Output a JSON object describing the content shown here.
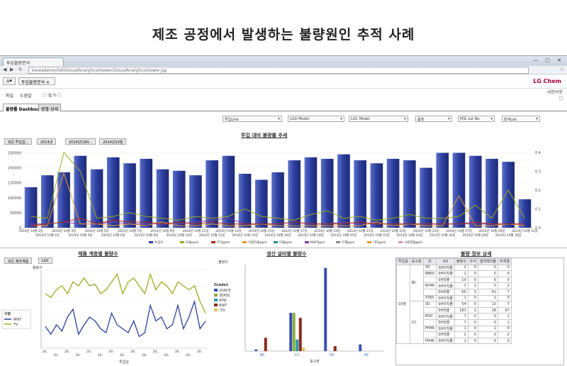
{
  "headline": "제조 공정에서 발생하는 불량원인 추적 사례",
  "browser": {
    "tab_title": "투입불량분석",
    "url": "koreademo/SASVisualAnalyticsViewer/VisualAnalyticsViewer.jsp",
    "win_controls": "— ▢ ✕"
  },
  "app": {
    "home_label": "⌂▾",
    "report_label": "투입불량분석 ✕",
    "logo": "LG Chem",
    "menu_file": "파일",
    "menu_help": "도움말",
    "menu_icons": "🗀 🖫 ↻ ⛶",
    "top_right_link": "사인아웃",
    "top_right_icon": "□",
    "tabs": [
      "불량률 Dashboard",
      "원별 상세"
    ]
  },
  "filters": [
    "투입Line",
    "LGD Model",
    "LGC Model",
    "품명",
    "POL Lot No.",
    "최적List"
  ],
  "top_chart": {
    "title": "투입 대비 불량률 추세",
    "breadcrumbs": [
      "모든 투입일...",
      "2014년",
      "2014년1월4...",
      "2014년10월"
    ],
    "y_left_ticks": [
      "0",
      "50000",
      "100000",
      "150000",
      "200000",
      "250000"
    ],
    "y_right_ticks": [
      "0.0",
      "0.1",
      "0.2",
      "0.3",
      "0.4"
    ],
    "legend": [
      "투입수",
      "투율ppm",
      "부식ppm",
      "이형이물ppm",
      "이물ppm",
      "NWTppm",
      "두께ppm",
      "기타ppm",
      "시료밀율ppm"
    ]
  },
  "bl_chart": {
    "title": "제품 계층별 불량수",
    "crumbs": [
      "모든 제조계층",
      "LGC"
    ],
    "ylabel": "불량수",
    "xlabel": "투입일",
    "legend_title": "구분",
    "legend": [
      "MNT",
      "TV"
    ],
    "tick_label": "20.."
  },
  "bm_chart": {
    "title": "생산 설비별 불량수",
    "ylabel": "불량수",
    "xlabel": "등구분",
    "legend_title": "Grade1",
    "legend": [
      "2GACE",
      "3DPOL",
      "ATW",
      "NWT",
      "기타"
    ],
    "categories": [
      "BC",
      "CC",
      "DC",
      "RC"
    ]
  },
  "detail_table": {
    "title": "불량 정보 상세",
    "headers": [
      "투입월",
      "등구분",
      "유",
      "SH",
      "불량수",
      "두식",
      "접착제이물",
      "무게결"
    ],
    "month": "10월",
    "groups": [
      "BC",
      "CC"
    ],
    "rows": [
      [
        "3D",
        "SH이직물",
        "2",
        "0",
        "0",
        "0"
      ],
      [
        "RB60",
        "SH이직물",
        "1",
        "0",
        "0",
        "0"
      ],
      [
        "",
        "SH직물",
        "10",
        "0",
        "6",
        "0"
      ],
      [
        "RH46",
        "SH이직물",
        "3",
        "1",
        "0",
        "2"
      ],
      [
        "",
        "SH직물",
        "65",
        "3",
        "41",
        "7"
      ],
      [
        "XT60",
        "SH이직물",
        "1",
        "0",
        "1",
        "0"
      ],
      [
        "3D",
        "SH이직물",
        "54",
        "0",
        "13",
        "7"
      ],
      [
        "",
        "SH직물",
        "183",
        "1",
        "18",
        "67"
      ],
      [
        "M30",
        "SH이직물",
        "7",
        "0",
        "0",
        "1"
      ],
      [
        "",
        "SH직물",
        "7",
        "0",
        "0",
        "1"
      ],
      [
        "PH46",
        "SH이직물",
        "1",
        "0",
        "1",
        "0"
      ],
      [
        "",
        "SH직물",
        "2",
        "0",
        "0",
        "2"
      ],
      [
        "PH46",
        "SH이직물",
        "1",
        "0",
        "0",
        "0"
      ]
    ]
  },
  "colors": {
    "bar_blue": "#2c3e9e",
    "line_olive": "#9aaa1e",
    "line_red": "#b02a1a",
    "line_orange": "#e59a3b",
    "line_purple": "#7d3c98",
    "line_teal": "#2a8c8c",
    "logo_red": "#a50034"
  },
  "chart_data": [
    {
      "type": "bar",
      "title": "투입 대비 불량률 추세",
      "categories": [
        "2014년 10월 1일",
        "2014년 10월 2일",
        "2014년 10월 3일",
        "2014년 10월 4일",
        "2014년 10월 5일",
        "2014년 10월 6일",
        "2014년 10월 7일",
        "2014년 10월 8일",
        "2014년 10월 9일",
        "2014년 10월 10일",
        "2014년 10월 11일",
        "2014년 10월 12일",
        "2014년 10월 13일",
        "2014년 10월 14일",
        "2014년 10월 15일",
        "2014년 10월 16일",
        "2014년 10월 17일",
        "2014년 10월 18일",
        "2014년 10월 19일",
        "2014년 10월 20일",
        "2014년 10월 21일",
        "2014년 10월 22일",
        "2014년 10월 23일",
        "2014년 10월 24일",
        "2014년 10월 25일",
        "2014년 10월 26일",
        "2014년 10월 27일",
        "2014년 10월 28일",
        "2014년 10월 29일",
        "2014년 10월 30일",
        "2014년 10월 31일"
      ],
      "ylim": [
        0,
        270000
      ],
      "y2lim": [
        0,
        0.43
      ],
      "series": [
        {
          "name": "투입수",
          "values": [
            135000,
            175000,
            185000,
            240000,
            195000,
            235000,
            215000,
            230000,
            195000,
            190000,
            175000,
            225000,
            240000,
            180000,
            160000,
            185000,
            225000,
            235000,
            230000,
            245000,
            225000,
            215000,
            230000,
            225000,
            200000,
            250000,
            250000,
            240000,
            230000,
            220000,
            95000
          ]
        },
        {
          "name": "투율ppm",
          "values": [
            0.06,
            0.05,
            0.4,
            0.3,
            0.05,
            0.06,
            0.08,
            0.06,
            0.05,
            0.04,
            0.06,
            0.05,
            0.06,
            0.1,
            0.06,
            0.05,
            0.04,
            0.07,
            0.09,
            0.05,
            0.06,
            0.04,
            0.05,
            0.07,
            0.05,
            0.05,
            0.06,
            0.12,
            0.05,
            0.2,
            0.05
          ]
        },
        {
          "name": "부식ppm",
          "values": [
            0.02,
            0.02,
            0.03,
            0.02,
            0.02,
            0.03,
            0.02,
            0.02,
            0.02,
            0.02,
            0.03,
            0.04,
            0.05,
            0.02,
            0.02,
            0.02,
            0.03,
            0.02,
            0.02,
            0.03,
            0.02,
            0.02,
            0.02,
            0.02,
            0.02,
            0.02,
            0.02,
            0.02,
            0.02,
            0.02,
            0.02
          ]
        },
        {
          "name": "기타ppm",
          "values": [
            0.01,
            0.01,
            0.29,
            0.02,
            0.02,
            0.01,
            0.02,
            0.01,
            0.03,
            0.01,
            0.01,
            0.02,
            0.01,
            0.01,
            0.02,
            0.01,
            0.01,
            0.01,
            0.01,
            0.01,
            0.01,
            0.03,
            0.01,
            0.02,
            0.01,
            0.01,
            0.17,
            0.01,
            0.01,
            0.02,
            0.01
          ]
        },
        {
          "name": "두께ppm",
          "values": [
            0.01,
            0.02,
            0.03,
            0.05,
            0.02,
            0.04,
            0.03,
            0.03,
            0.02,
            0.03,
            0.02,
            0.03,
            0.02,
            0.02,
            0.02,
            0.02,
            0.03,
            0.02,
            0.02,
            0.02,
            0.03,
            0.02,
            0.02,
            0.02,
            0.02,
            0.02,
            0.02,
            0.03,
            0.02,
            0.02,
            0.02
          ]
        }
      ]
    },
    {
      "type": "line",
      "title": "제품 계층별 불량수",
      "ylim": [
        0,
        100
      ],
      "series": [
        {
          "name": "MNT",
          "values": [
            28,
            18,
            30,
            22,
            40,
            50,
            18,
            30,
            40,
            35,
            25,
            20,
            45,
            30,
            25,
            20,
            35,
            15,
            20,
            55,
            35,
            40,
            25,
            30,
            55,
            25,
            40,
            60,
            25,
            35
          ]
        },
        {
          "name": "TV",
          "values": [
            70,
            65,
            75,
            80,
            70,
            85,
            80,
            90,
            80,
            82,
            70,
            75,
            85,
            95,
            70,
            85,
            90,
            80,
            70,
            95,
            75,
            85,
            80,
            70,
            85,
            80,
            75,
            80,
            60,
            45
          ]
        }
      ]
    },
    {
      "type": "bar",
      "title": "생산 설비별 불량수",
      "categories": [
        "BC",
        "CC",
        "DC",
        "RC"
      ],
      "ylim": [
        0,
        520
      ],
      "series": [
        {
          "name": "2GACE",
          "values": [
            10,
            230,
            500,
            40
          ]
        },
        {
          "name": "3DPOL",
          "values": [
            0,
            230,
            0,
            0
          ]
        },
        {
          "name": "ATW",
          "values": [
            0,
            70,
            0,
            0
          ]
        },
        {
          "name": "NWT",
          "values": [
            80,
            200,
            30,
            0
          ]
        },
        {
          "name": "기타",
          "values": [
            0,
            20,
            0,
            0
          ]
        }
      ]
    }
  ]
}
